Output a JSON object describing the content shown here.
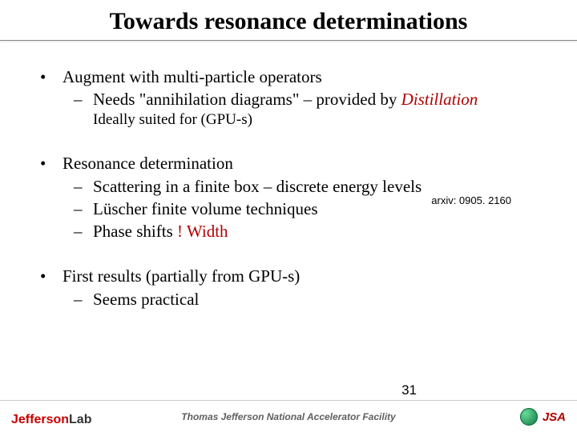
{
  "title": "Towards resonance determinations",
  "b1": {
    "head": "Augment with multi-particle operators",
    "sub1_a": "Needs \"annihilation diagrams\" – provided by ",
    "sub1_b": "Distillation",
    "note": "Ideally suited for (GPU-s)",
    "arxiv": "arxiv: 0905. 2160"
  },
  "b2": {
    "head": "Resonance determination",
    "s1": "Scattering in a finite box – discrete energy levels",
    "s2": "Lüscher finite volume techniques",
    "s3a": "Phase shifts ",
    "s3b": "! ",
    "s3c": "Width"
  },
  "b3": {
    "head": "First results (partially from GPU-s)",
    "s1": "Seems practical"
  },
  "footer": "Thomas Jefferson National Accelerator Facility",
  "page": "31",
  "logo_a": "Jefferson",
  "logo_b": " Lab",
  "jsa": "JSA",
  "bullet_char": "•",
  "dash_char": "–"
}
